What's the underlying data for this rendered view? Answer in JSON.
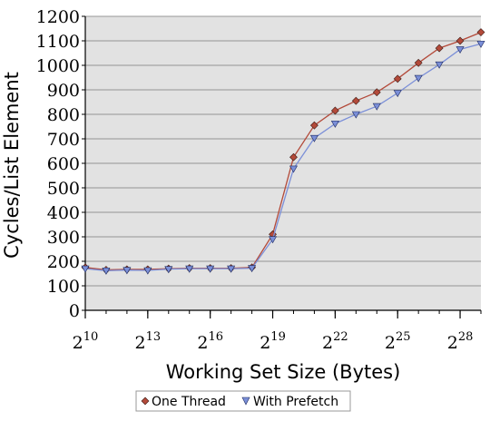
{
  "chart_data": {
    "type": "line",
    "xlabel": "Working Set Size (Bytes)",
    "ylabel": "Cycles/List Element",
    "x_base": "2",
    "x_exponents": [
      10,
      11,
      12,
      13,
      14,
      15,
      16,
      17,
      18,
      19,
      20,
      21,
      22,
      23,
      24,
      25,
      26,
      27,
      28,
      29
    ],
    "x_tick_exponents": [
      "10",
      "13",
      "16",
      "19",
      "22",
      "25",
      "28"
    ],
    "x_tick_values": [
      10,
      13,
      16,
      19,
      22,
      25,
      28
    ],
    "xlim": [
      10,
      29
    ],
    "ylim": [
      0,
      1200
    ],
    "y_ticks": [
      "0",
      "100",
      "200",
      "300",
      "400",
      "500",
      "600",
      "700",
      "800",
      "900",
      "1000",
      "1100",
      "1200"
    ],
    "grid": "horizontal",
    "legend_position": "bottom",
    "series": [
      {
        "name": "One Thread",
        "color": "#b34a3a",
        "marker": "diamond",
        "values": [
          175,
          165,
          167,
          167,
          170,
          172,
          172,
          172,
          175,
          310,
          625,
          755,
          815,
          855,
          890,
          945,
          1010,
          1070,
          1100,
          1135
        ]
      },
      {
        "name": "With Prefetch",
        "color": "#7b8fd8",
        "marker": "triangle-down",
        "values": [
          170,
          162,
          164,
          163,
          168,
          170,
          170,
          170,
          172,
          290,
          578,
          703,
          762,
          800,
          833,
          887,
          948,
          1003,
          1065,
          1088
        ]
      }
    ]
  }
}
